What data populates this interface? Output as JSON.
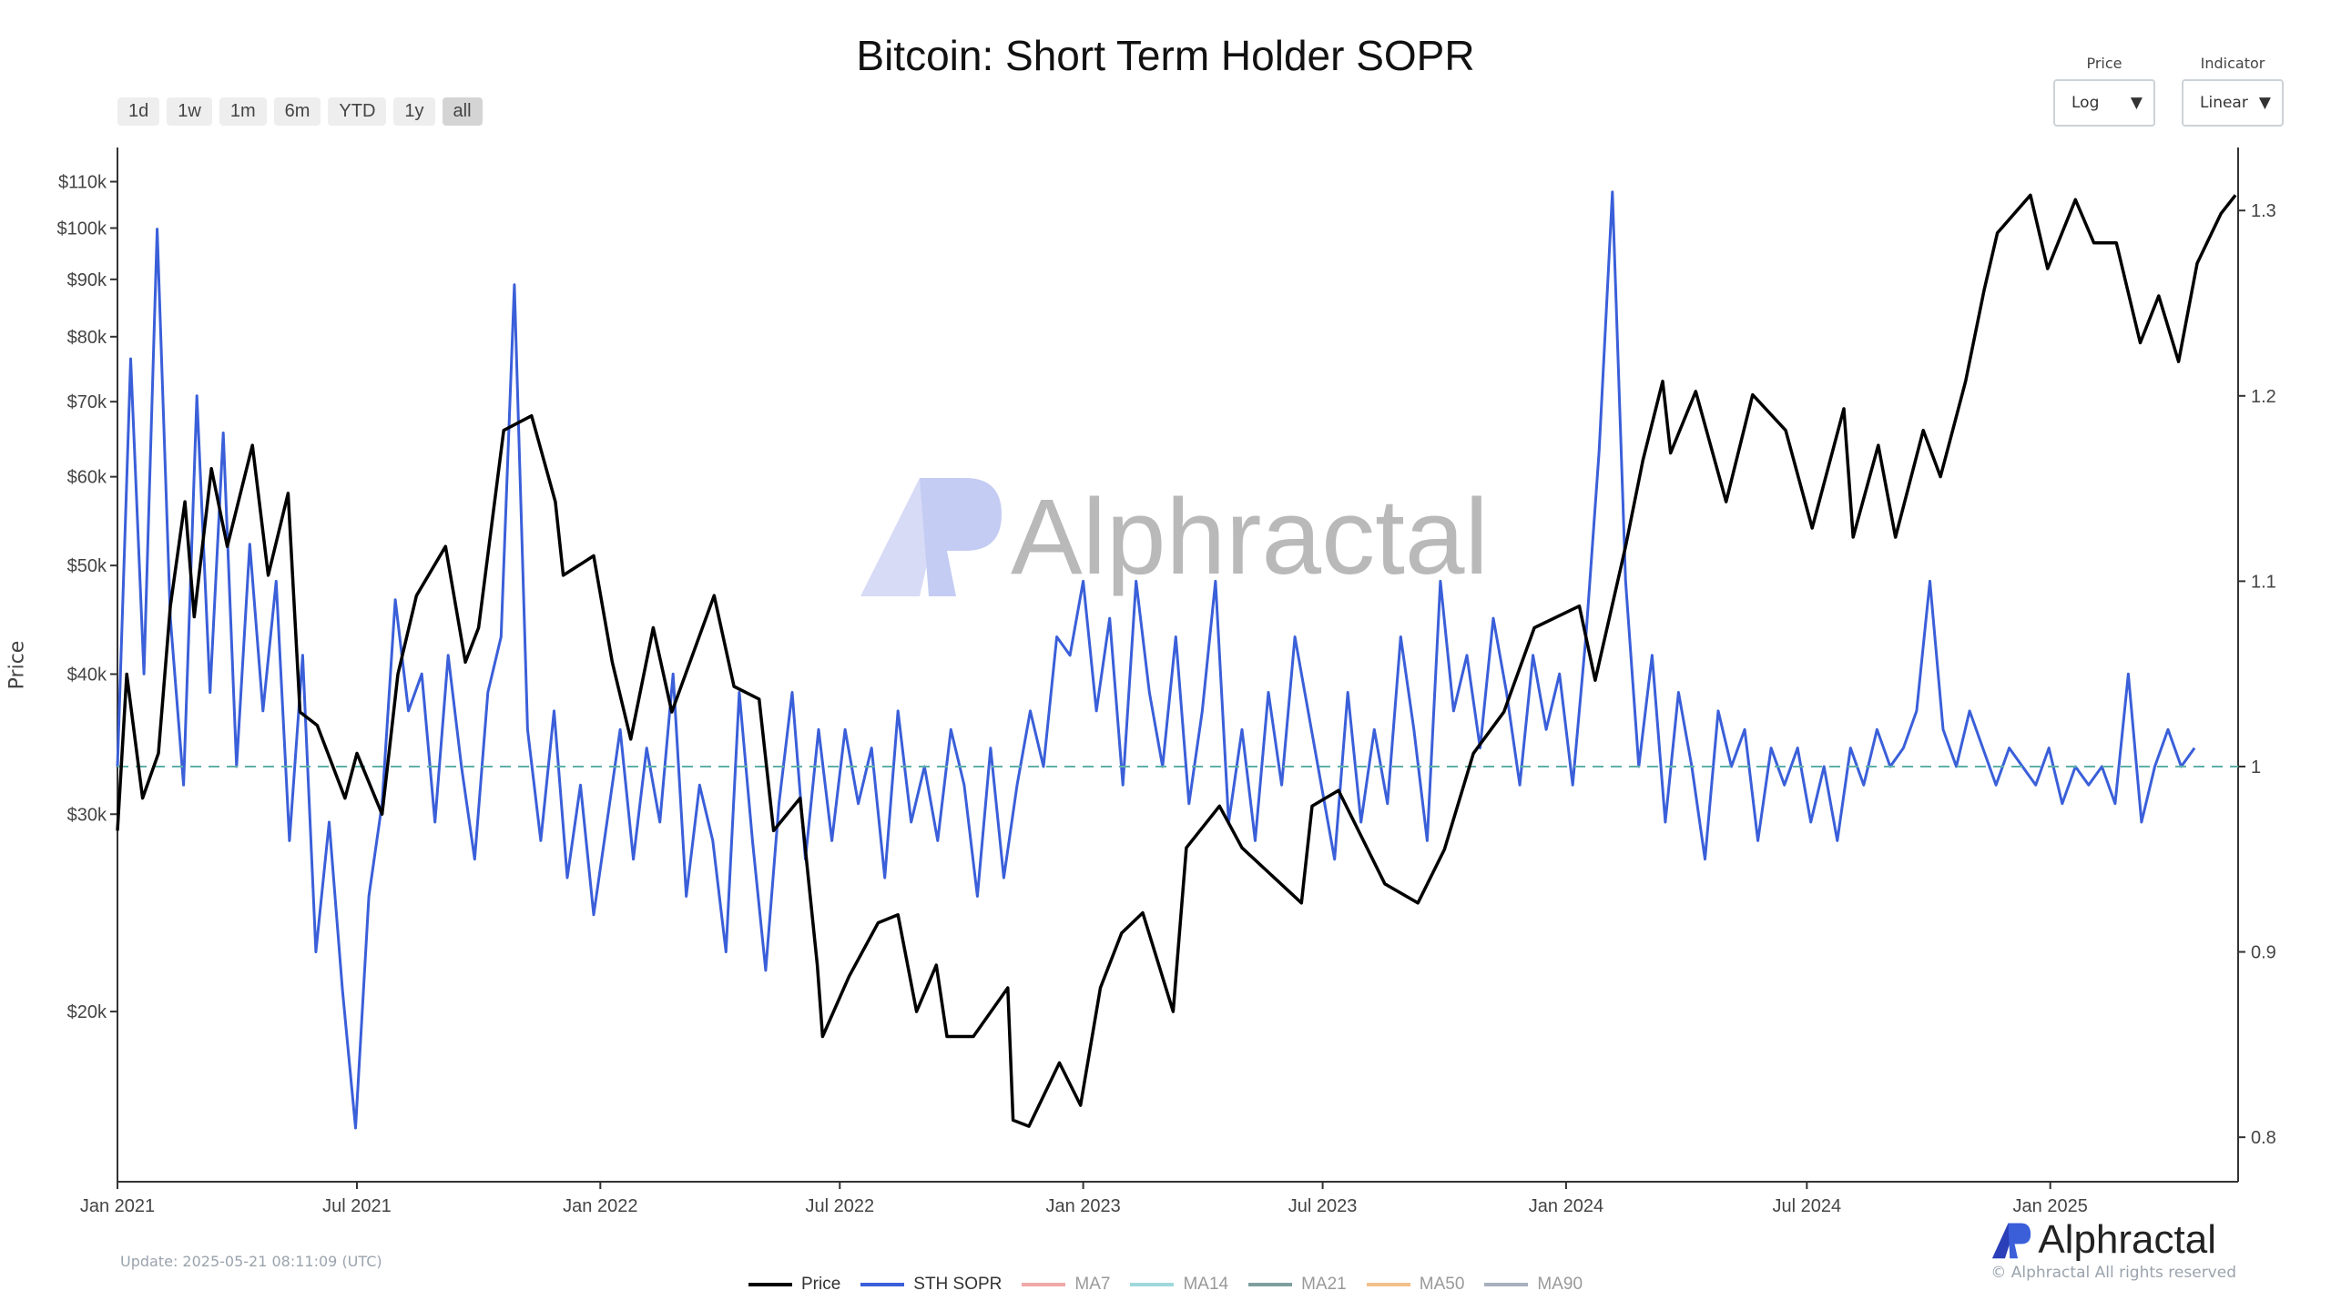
{
  "title": "Bitcoin: Short Term Holder SOPR",
  "range_buttons": [
    {
      "label": "1d",
      "active": false
    },
    {
      "label": "1w",
      "active": false
    },
    {
      "label": "1m",
      "active": false
    },
    {
      "label": "6m",
      "active": false
    },
    {
      "label": "YTD",
      "active": false
    },
    {
      "label": "1y",
      "active": false
    },
    {
      "label": "all",
      "active": true
    }
  ],
  "controls": {
    "price": {
      "label": "Price",
      "value": "Log"
    },
    "indicator": {
      "label": "Indicator",
      "value": "Linear"
    }
  },
  "watermark": "Alphractal",
  "logo_text": "Alphractal",
  "update_text": "Update: 2025-05-21 08:11:09 (UTC)",
  "copyright": "© Alphractal All rights reserved",
  "colors": {
    "price": "#000000",
    "sopr": "#3a5fd9",
    "ma7": "#f0a8a8",
    "ma14": "#9fd8dc",
    "ma21": "#7f9f9f",
    "ma50": "#f3c08a",
    "ma90": "#a7b0bc",
    "baseline": "#5fb0a8"
  },
  "chart_data": {
    "type": "line",
    "title": "Bitcoin: Short Term Holder SOPR",
    "ylabel": "Price",
    "x_range": [
      "2021-01-01",
      "2025-05-23"
    ],
    "x_ticks": [
      {
        "date": "2021-01-01",
        "label": "Jan 2021"
      },
      {
        "date": "2021-07-01",
        "label": "Jul 2021"
      },
      {
        "date": "2022-01-01",
        "label": "Jan 2022"
      },
      {
        "date": "2022-07-01",
        "label": "Jul 2022"
      },
      {
        "date": "2023-01-01",
        "label": "Jan 2023"
      },
      {
        "date": "2023-07-01",
        "label": "Jul 2023"
      },
      {
        "date": "2024-01-01",
        "label": "Jan 2024"
      },
      {
        "date": "2024-07-01",
        "label": "Jul 2024"
      },
      {
        "date": "2025-01-01",
        "label": "Jan 2025"
      }
    ],
    "y_left": {
      "scale": "log",
      "range": [
        14100,
        118000
      ],
      "ticks": [
        {
          "v": 20000,
          "label": "$20k"
        },
        {
          "v": 30000,
          "label": "$30k"
        },
        {
          "v": 40000,
          "label": "$40k"
        },
        {
          "v": 50000,
          "label": "$50k"
        },
        {
          "v": 60000,
          "label": "$60k"
        },
        {
          "v": 70000,
          "label": "$70k"
        },
        {
          "v": 80000,
          "label": "$80k"
        },
        {
          "v": 90000,
          "label": "$90k"
        },
        {
          "v": 100000,
          "label": "$100k"
        },
        {
          "v": 110000,
          "label": "$110k"
        }
      ]
    },
    "y_right": {
      "scale": "linear",
      "range": [
        0.776,
        1.334
      ],
      "ticks": [
        {
          "v": 0.8,
          "label": "0.8"
        },
        {
          "v": 0.9,
          "label": "0.9"
        },
        {
          "v": 1.0,
          "label": "1"
        },
        {
          "v": 1.1,
          "label": "1.1"
        },
        {
          "v": 1.2,
          "label": "1.2"
        },
        {
          "v": 1.3,
          "label": "1.3"
        }
      ]
    },
    "baseline": 1,
    "legend": [
      "Price",
      "STH SOPR",
      "MA7",
      "MA14",
      "MA21",
      "MA50",
      "MA90"
    ],
    "price_series": [
      [
        "2021-01-01",
        29000
      ],
      [
        "2021-01-08",
        40000
      ],
      [
        "2021-01-20",
        31000
      ],
      [
        "2021-02-01",
        34000
      ],
      [
        "2021-02-10",
        46000
      ],
      [
        "2021-02-21",
        57000
      ],
      [
        "2021-02-28",
        45000
      ],
      [
        "2021-03-13",
        61000
      ],
      [
        "2021-03-25",
        52000
      ],
      [
        "2021-04-13",
        64000
      ],
      [
        "2021-04-25",
        49000
      ],
      [
        "2021-05-10",
        58000
      ],
      [
        "2021-05-19",
        37000
      ],
      [
        "2021-06-01",
        36000
      ],
      [
        "2021-06-22",
        31000
      ],
      [
        "2021-07-01",
        34000
      ],
      [
        "2021-07-20",
        30000
      ],
      [
        "2021-08-01",
        40000
      ],
      [
        "2021-08-15",
        47000
      ],
      [
        "2021-09-06",
        52000
      ],
      [
        "2021-09-21",
        41000
      ],
      [
        "2021-10-01",
        44000
      ],
      [
        "2021-10-20",
        66000
      ],
      [
        "2021-11-10",
        68000
      ],
      [
        "2021-11-28",
        57000
      ],
      [
        "2021-12-04",
        49000
      ],
      [
        "2021-12-27",
        51000
      ],
      [
        "2022-01-10",
        41000
      ],
      [
        "2022-01-24",
        35000
      ],
      [
        "2022-02-10",
        44000
      ],
      [
        "2022-02-24",
        37000
      ],
      [
        "2022-03-28",
        47000
      ],
      [
        "2022-04-12",
        39000
      ],
      [
        "2022-05-01",
        38000
      ],
      [
        "2022-05-12",
        29000
      ],
      [
        "2022-06-01",
        31000
      ],
      [
        "2022-06-14",
        22000
      ],
      [
        "2022-06-18",
        19000
      ],
      [
        "2022-07-08",
        21500
      ],
      [
        "2022-07-30",
        24000
      ],
      [
        "2022-08-14",
        24400
      ],
      [
        "2022-08-28",
        20000
      ],
      [
        "2022-09-12",
        22000
      ],
      [
        "2022-09-20",
        19000
      ],
      [
        "2022-10-10",
        19000
      ],
      [
        "2022-11-05",
        21000
      ],
      [
        "2022-11-09",
        16000
      ],
      [
        "2022-11-21",
        15800
      ],
      [
        "2022-12-14",
        18000
      ],
      [
        "2022-12-30",
        16500
      ],
      [
        "2023-01-14",
        21000
      ],
      [
        "2023-01-30",
        23500
      ],
      [
        "2023-02-15",
        24500
      ],
      [
        "2023-03-10",
        20000
      ],
      [
        "2023-03-20",
        28000
      ],
      [
        "2023-04-14",
        30500
      ],
      [
        "2023-05-01",
        28000
      ],
      [
        "2023-06-15",
        25000
      ],
      [
        "2023-06-23",
        30500
      ],
      [
        "2023-07-13",
        31500
      ],
      [
        "2023-08-17",
        26000
      ],
      [
        "2023-09-11",
        25000
      ],
      [
        "2023-10-01",
        27900
      ],
      [
        "2023-10-23",
        34000
      ],
      [
        "2023-11-15",
        37000
      ],
      [
        "2023-12-08",
        44000
      ],
      [
        "2024-01-11",
        46000
      ],
      [
        "2024-01-23",
        39500
      ],
      [
        "2024-02-15",
        52000
      ],
      [
        "2024-02-28",
        62000
      ],
      [
        "2024-03-14",
        73000
      ],
      [
        "2024-03-20",
        63000
      ],
      [
        "2024-04-08",
        71500
      ],
      [
        "2024-05-01",
        57000
      ],
      [
        "2024-05-21",
        71000
      ],
      [
        "2024-06-15",
        66000
      ],
      [
        "2024-07-05",
        54000
      ],
      [
        "2024-07-29",
        69000
      ],
      [
        "2024-08-05",
        53000
      ],
      [
        "2024-08-24",
        64000
      ],
      [
        "2024-09-06",
        53000
      ],
      [
        "2024-09-27",
        66000
      ],
      [
        "2024-10-10",
        60000
      ],
      [
        "2024-10-29",
        73000
      ],
      [
        "2024-11-12",
        88000
      ],
      [
        "2024-11-22",
        99000
      ],
      [
        "2024-12-17",
        107000
      ],
      [
        "2024-12-30",
        92000
      ],
      [
        "2025-01-20",
        106000
      ],
      [
        "2025-02-03",
        97000
      ],
      [
        "2025-02-20",
        97000
      ],
      [
        "2025-03-10",
        79000
      ],
      [
        "2025-03-24",
        87000
      ],
      [
        "2025-04-08",
        76000
      ],
      [
        "2025-04-22",
        93000
      ],
      [
        "2025-05-10",
        103000
      ],
      [
        "2025-05-21",
        107000
      ]
    ],
    "sopr_series": {
      "start": "2021-01-01",
      "step_days": 10,
      "values": [
        1.0,
        1.22,
        1.05,
        1.29,
        1.08,
        0.99,
        1.2,
        1.04,
        1.18,
        1.0,
        1.12,
        1.03,
        1.1,
        0.96,
        1.06,
        0.9,
        0.97,
        0.88,
        0.805,
        0.93,
        0.98,
        1.09,
        1.03,
        1.05,
        0.97,
        1.06,
        1.0,
        0.95,
        1.04,
        1.07,
        1.26,
        1.02,
        0.96,
        1.03,
        0.94,
        0.99,
        0.92,
        0.97,
        1.02,
        0.95,
        1.01,
        0.97,
        1.05,
        0.93,
        0.99,
        0.96,
        0.9,
        1.04,
        0.96,
        0.89,
        0.98,
        1.04,
        0.95,
        1.02,
        0.96,
        1.02,
        0.98,
        1.01,
        0.94,
        1.03,
        0.97,
        1.0,
        0.96,
        1.02,
        0.99,
        0.93,
        1.01,
        0.94,
        0.99,
        1.03,
        1.0,
        1.07,
        1.06,
        1.1,
        1.03,
        1.08,
        0.99,
        1.1,
        1.04,
        1.0,
        1.07,
        0.98,
        1.03,
        1.1,
        0.97,
        1.02,
        0.96,
        1.04,
        0.99,
        1.07,
        1.03,
        0.99,
        0.95,
        1.04,
        0.97,
        1.02,
        0.98,
        1.07,
        1.02,
        0.96,
        1.1,
        1.03,
        1.06,
        1.01,
        1.08,
        1.04,
        0.99,
        1.06,
        1.02,
        1.05,
        0.99,
        1.07,
        1.17,
        1.31,
        1.1,
        1.0,
        1.06,
        0.97,
        1.04,
        1.0,
        0.95,
        1.03,
        1.0,
        1.02,
        0.96,
        1.01,
        0.99,
        1.01,
        0.97,
        1.0,
        0.96,
        1.01,
        0.99,
        1.02,
        1.0,
        1.01,
        1.03,
        1.1,
        1.02,
        1.0,
        1.03,
        1.01,
        0.99,
        1.01,
        1.0,
        0.99,
        1.01,
        0.98,
        1.0,
        0.99,
        1.0,
        0.98,
        1.05,
        0.97,
        1.0,
        1.02,
        1.0,
        1.01
      ]
    }
  }
}
